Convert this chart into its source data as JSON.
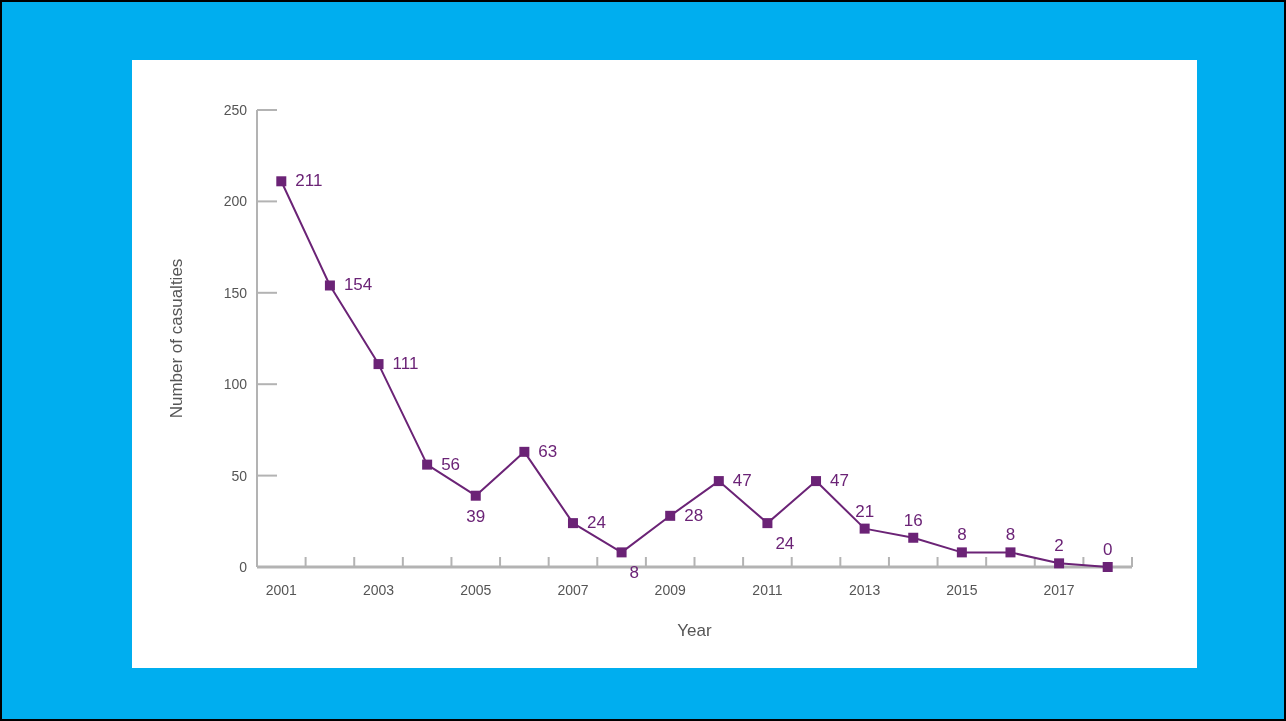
{
  "chart_data": {
    "type": "line",
    "xlabel": "Year",
    "ylabel": "Number of casualties",
    "categories": [
      "2001",
      null,
      "2003",
      null,
      "2005",
      null,
      "2007",
      null,
      "2009",
      null,
      "2011",
      null,
      "2013",
      null,
      "2015",
      null,
      "2017",
      null
    ],
    "series": [
      {
        "color": "#6b2376",
        "values": [
          211,
          154,
          111,
          56,
          39,
          63,
          24,
          8,
          28,
          47,
          24,
          47,
          21,
          16,
          8,
          8,
          2,
          0
        ]
      }
    ],
    "ylim": [
      0,
      250
    ],
    "yticks": [
      0,
      50,
      100,
      150,
      200,
      250
    ],
    "marker": "square",
    "line_style": "solid",
    "data_labels": true,
    "grid": false
  }
}
